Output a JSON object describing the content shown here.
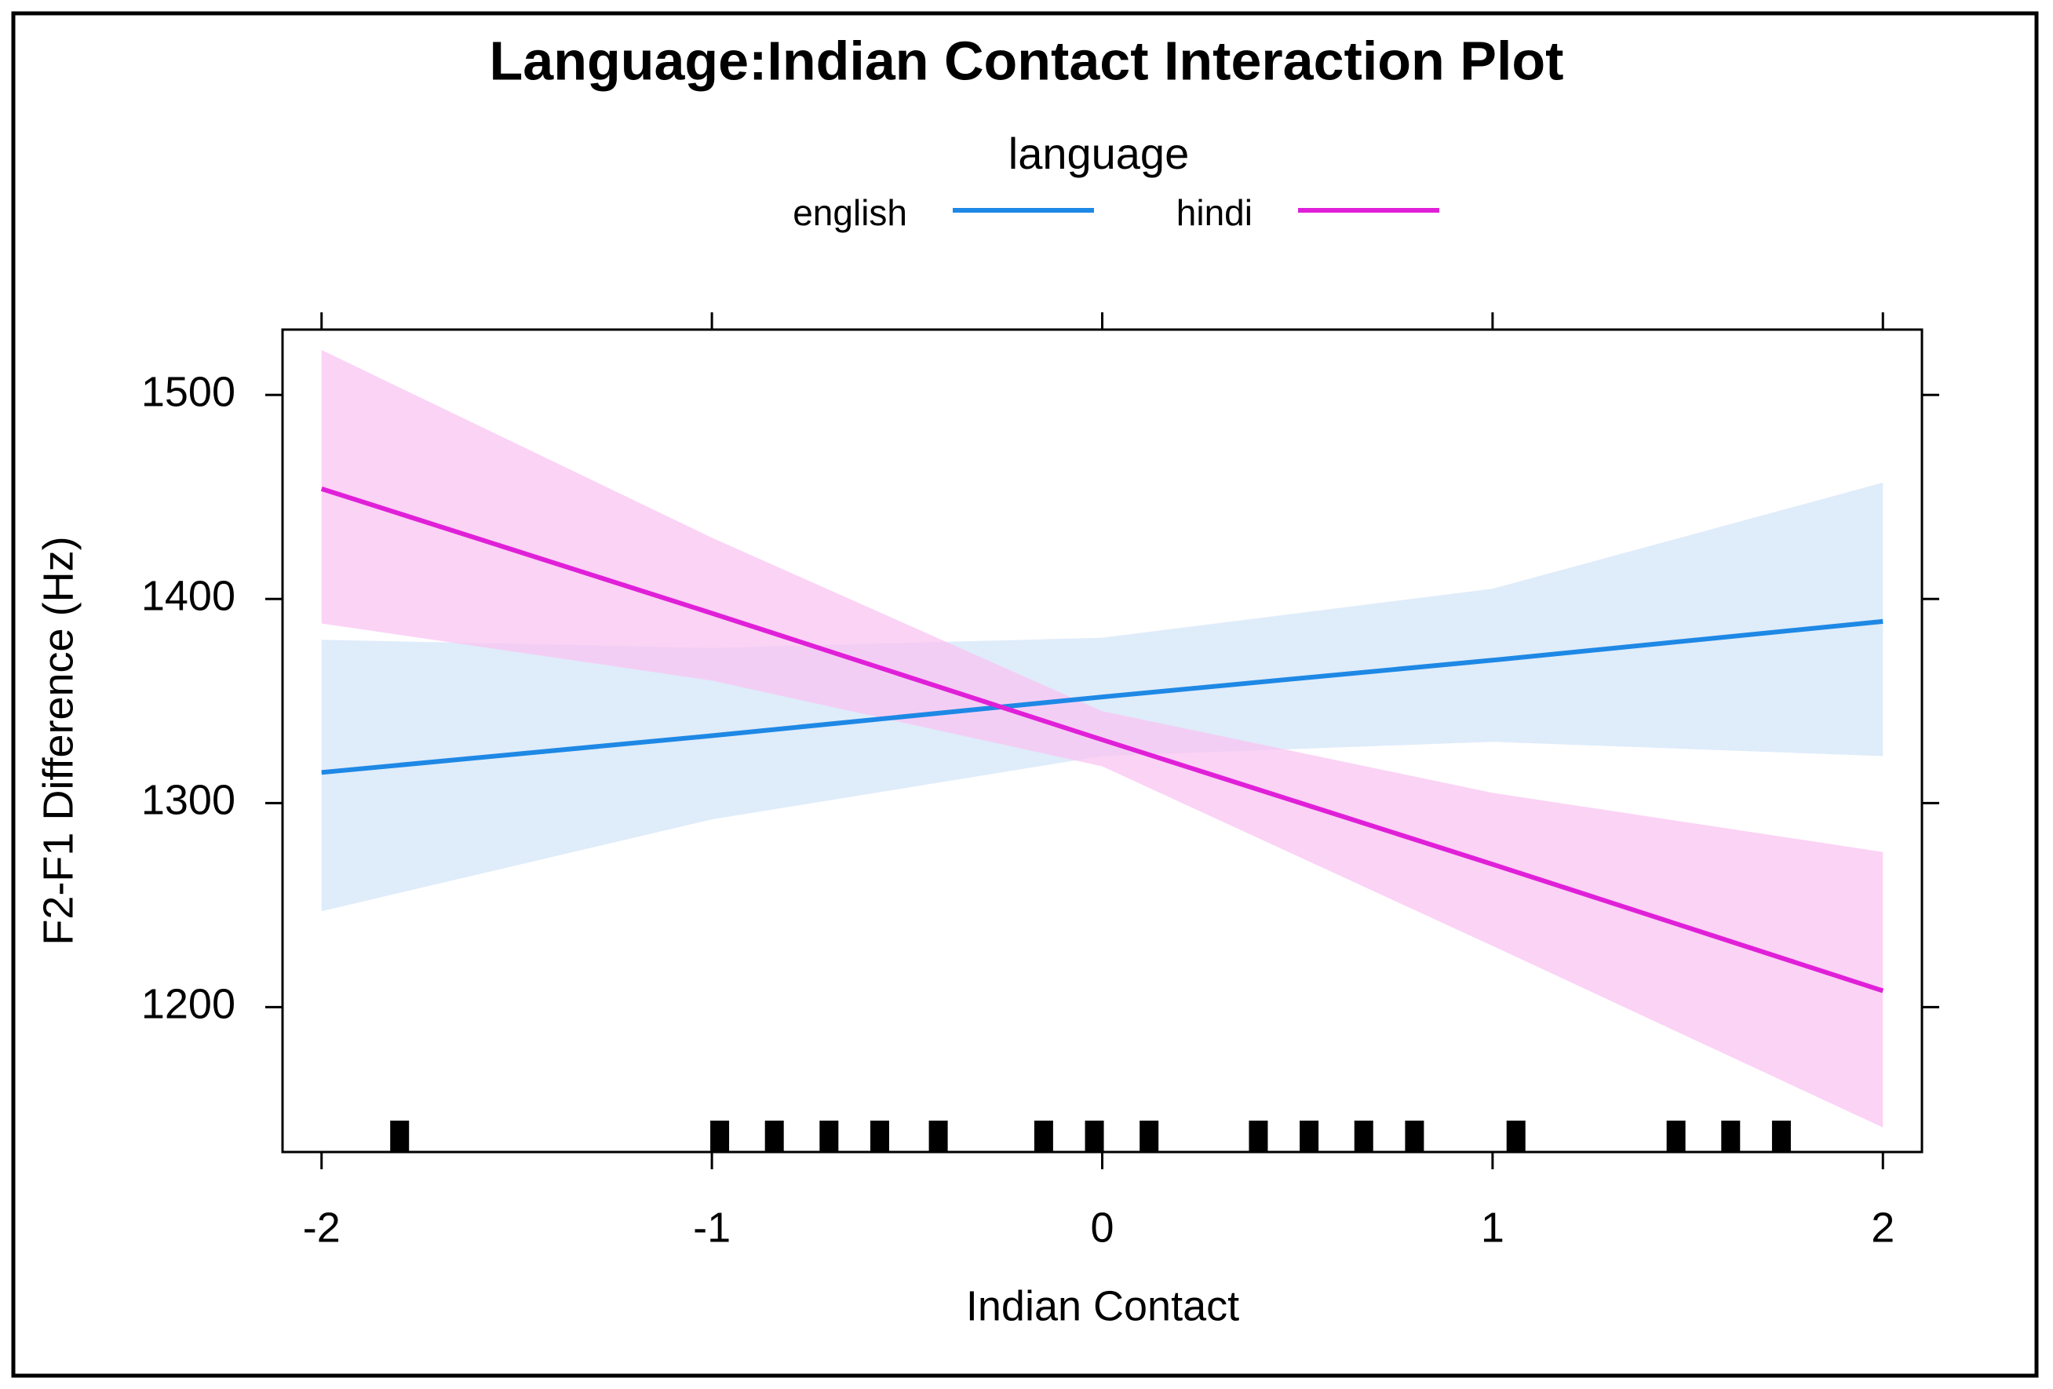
{
  "chart_data": {
    "type": "line",
    "title": "Language:Indian Contact Interaction Plot",
    "legend_title": "language",
    "x_label": "Indian Contact",
    "y_label": "F2-F1 Difference (Hz)",
    "x": [
      -2,
      -1,
      0,
      1,
      2
    ],
    "series": [
      {
        "name": "english",
        "color": "#1e88e5",
        "band_color": "#d4e6f8",
        "values": [
          1315,
          1333,
          1352,
          1370,
          1389
        ],
        "lower": [
          1247,
          1292,
          1323,
          1330,
          1323
        ],
        "upper": [
          1380,
          1376,
          1381,
          1405,
          1457
        ]
      },
      {
        "name": "hindi",
        "color": "#e020d8",
        "band_color": "#f9c4f2",
        "values": [
          1454,
          1393,
          1331,
          1270,
          1208
        ],
        "lower": [
          1388,
          1360,
          1318,
          1230,
          1141
        ],
        "upper": [
          1522,
          1430,
          1345,
          1305,
          1276
        ]
      }
    ],
    "rug": [
      -1.8,
      -0.98,
      -0.84,
      -0.7,
      -0.57,
      -0.42,
      -0.15,
      -0.02,
      0.12,
      0.4,
      0.53,
      0.67,
      0.8,
      1.06,
      1.47,
      1.61,
      1.74
    ],
    "xlim": [
      -2.1,
      2.1
    ],
    "xticks": [
      -2,
      -1,
      0,
      1,
      2
    ],
    "ylim": [
      1129,
      1532
    ],
    "yticks": [
      1200,
      1300,
      1400,
      1500
    ],
    "legend_position": "top"
  }
}
